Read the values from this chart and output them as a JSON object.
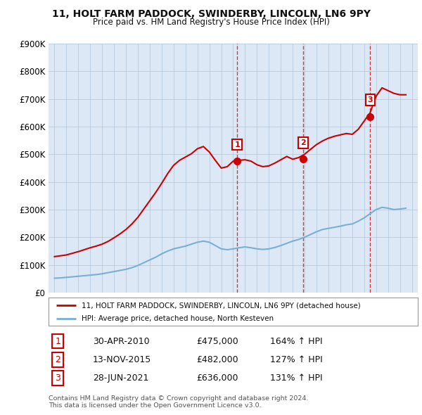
{
  "title": "11, HOLT FARM PADDOCK, SWINDERBY, LINCOLN, LN6 9PY",
  "subtitle": "Price paid vs. HM Land Registry's House Price Index (HPI)",
  "ylim": [
    0,
    900000
  ],
  "yticks": [
    0,
    100000,
    200000,
    300000,
    400000,
    500000,
    600000,
    700000,
    800000,
    900000
  ],
  "ytick_labels": [
    "£0",
    "£100K",
    "£200K",
    "£300K",
    "£400K",
    "£500K",
    "£600K",
    "£700K",
    "£800K",
    "£900K"
  ],
  "background_color": "#ffffff",
  "chart_bg_color": "#dce8f5",
  "grid_color": "#b0c4d8",
  "sale_color": "#cc0000",
  "hpi_color": "#7aafd4",
  "sale_label": "11, HOLT FARM PADDOCK, SWINDERBY, LINCOLN, LN6 9PY (detached house)",
  "hpi_label": "HPI: Average price, detached house, North Kesteven",
  "transactions": [
    {
      "num": 1,
      "date": "30-APR-2010",
      "price": 475000,
      "price_str": "£475,000",
      "hpi_pct": "164% ↑ HPI",
      "x": 2010.33
    },
    {
      "num": 2,
      "date": "13-NOV-2015",
      "price": 482000,
      "price_str": "£482,000",
      "hpi_pct": "127% ↑ HPI",
      "x": 2015.87
    },
    {
      "num": 3,
      "date": "28-JUN-2021",
      "price": 636000,
      "price_str": "£636,000",
      "hpi_pct": "131% ↑ HPI",
      "x": 2021.5
    }
  ],
  "footer": "Contains HM Land Registry data © Crown copyright and database right 2024.\nThis data is licensed under the Open Government Licence v3.0.",
  "hpi_data_x": [
    1995,
    1995.5,
    1996,
    1996.5,
    1997,
    1997.5,
    1998,
    1998.5,
    1999,
    1999.5,
    2000,
    2000.5,
    2001,
    2001.5,
    2002,
    2002.5,
    2003,
    2003.5,
    2004,
    2004.5,
    2005,
    2005.5,
    2006,
    2006.5,
    2007,
    2007.5,
    2008,
    2008.5,
    2009,
    2009.5,
    2010,
    2010.5,
    2011,
    2011.5,
    2012,
    2012.5,
    2013,
    2013.5,
    2014,
    2014.5,
    2015,
    2015.5,
    2016,
    2016.5,
    2017,
    2017.5,
    2018,
    2018.5,
    2019,
    2019.5,
    2020,
    2020.5,
    2021,
    2021.5,
    2022,
    2022.5,
    2023,
    2023.5,
    2024,
    2024.5
  ],
  "hpi_data_y": [
    52000,
    53000,
    55000,
    57000,
    59000,
    61000,
    63000,
    65000,
    68000,
    72000,
    76000,
    80000,
    84000,
    90000,
    98000,
    108000,
    118000,
    128000,
    140000,
    150000,
    158000,
    163000,
    168000,
    175000,
    182000,
    186000,
    182000,
    170000,
    158000,
    155000,
    158000,
    162000,
    165000,
    162000,
    158000,
    156000,
    158000,
    163000,
    170000,
    178000,
    186000,
    192000,
    200000,
    210000,
    220000,
    228000,
    232000,
    236000,
    240000,
    245000,
    248000,
    258000,
    270000,
    285000,
    300000,
    308000,
    305000,
    300000,
    302000,
    305000
  ],
  "sale_data_x": [
    1995,
    1995.5,
    1996,
    1996.5,
    1997,
    1997.5,
    1998,
    1998.5,
    1999,
    1999.5,
    2000,
    2000.5,
    2001,
    2001.5,
    2002,
    2002.5,
    2003,
    2003.5,
    2004,
    2004.5,
    2005,
    2005.5,
    2006,
    2006.5,
    2007,
    2007.5,
    2008,
    2008.5,
    2009,
    2009.5,
    2010,
    2010.5,
    2011,
    2011.5,
    2012,
    2012.5,
    2013,
    2013.5,
    2014,
    2014.5,
    2015,
    2015.5,
    2016,
    2016.5,
    2017,
    2017.5,
    2018,
    2018.5,
    2019,
    2019.5,
    2020,
    2020.5,
    2021,
    2021.5,
    2022,
    2022.5,
    2023,
    2023.5,
    2024,
    2024.5
  ],
  "sale_data_y": [
    130000,
    133000,
    136000,
    142000,
    148000,
    155000,
    162000,
    168000,
    175000,
    185000,
    198000,
    212000,
    228000,
    248000,
    272000,
    302000,
    332000,
    362000,
    395000,
    430000,
    460000,
    478000,
    490000,
    502000,
    520000,
    528000,
    508000,
    478000,
    450000,
    455000,
    475000,
    478000,
    480000,
    475000,
    462000,
    455000,
    458000,
    468000,
    480000,
    492000,
    482000,
    488000,
    500000,
    518000,
    535000,
    548000,
    558000,
    565000,
    570000,
    575000,
    572000,
    590000,
    620000,
    650000,
    710000,
    740000,
    730000,
    720000,
    715000,
    715000
  ]
}
